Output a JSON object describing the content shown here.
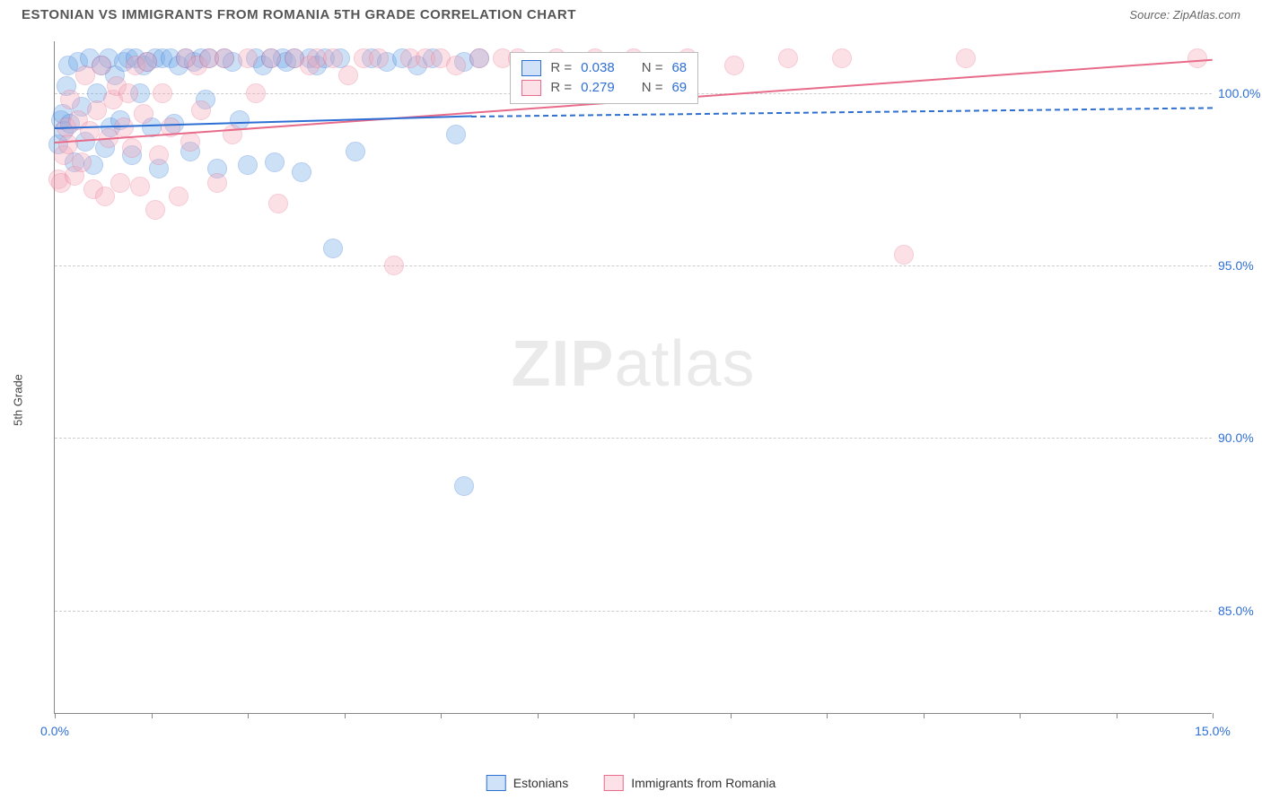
{
  "header": {
    "title": "ESTONIAN VS IMMIGRANTS FROM ROMANIA 5TH GRADE CORRELATION CHART",
    "source_label": "Source:",
    "source_value": "ZipAtlas.com"
  },
  "chart": {
    "type": "scatter",
    "ylabel": "5th Grade",
    "xlim": [
      0,
      15
    ],
    "ylim": [
      82,
      101.5
    ],
    "xtick_positions": [
      0,
      1.25,
      2.5,
      3.75,
      5.0,
      6.25,
      7.5,
      8.75,
      10.0,
      11.25,
      12.5,
      13.75,
      15.0
    ],
    "xtick_labels": {
      "0": "0.0%",
      "15": "15.0%"
    },
    "ytick_positions": [
      85,
      90,
      95,
      100
    ],
    "ytick_labels": {
      "85": "85.0%",
      "90": "90.0%",
      "95": "95.0%",
      "100": "100.0%"
    },
    "xlabel_color": "#2e6fd4",
    "ylabel_tick_color": "#2e6fd4",
    "grid_color": "#cccccc",
    "axis_color": "#888888",
    "background_color": "#ffffff",
    "marker_radius": 11,
    "marker_opacity": 0.35,
    "series": [
      {
        "name": "Estonians",
        "fill_color": "#6fa8e8",
        "stroke_color": "#2e6fd4",
        "trend_color": "#2e6fd4",
        "trend": {
          "x0": 0,
          "y0": 99.0,
          "x1": 5.4,
          "y1": 99.35,
          "dash_x1": 15,
          "dash_y1": 99.6
        },
        "R": "0.038",
        "N": "68",
        "points": [
          [
            0.05,
            98.5
          ],
          [
            0.08,
            99.2
          ],
          [
            0.1,
            99.4
          ],
          [
            0.12,
            98.9
          ],
          [
            0.15,
            100.2
          ],
          [
            0.18,
            100.8
          ],
          [
            0.2,
            99.1
          ],
          [
            0.25,
            98.0
          ],
          [
            0.3,
            100.9
          ],
          [
            0.35,
            99.6
          ],
          [
            0.4,
            98.6
          ],
          [
            0.45,
            101.0
          ],
          [
            0.5,
            97.9
          ],
          [
            0.55,
            100.0
          ],
          [
            0.6,
            100.8
          ],
          [
            0.65,
            98.4
          ],
          [
            0.7,
            101.0
          ],
          [
            0.72,
            99.0
          ],
          [
            0.78,
            100.5
          ],
          [
            0.85,
            99.2
          ],
          [
            0.9,
            100.9
          ],
          [
            0.95,
            101.0
          ],
          [
            1.0,
            98.2
          ],
          [
            1.05,
            101.0
          ],
          [
            1.1,
            100.0
          ],
          [
            1.15,
            100.8
          ],
          [
            1.2,
            100.9
          ],
          [
            1.25,
            99.0
          ],
          [
            1.3,
            101.0
          ],
          [
            1.35,
            97.8
          ],
          [
            1.4,
            101.0
          ],
          [
            1.5,
            101.0
          ],
          [
            1.55,
            99.1
          ],
          [
            1.6,
            100.8
          ],
          [
            1.7,
            101.0
          ],
          [
            1.75,
            98.3
          ],
          [
            1.8,
            100.9
          ],
          [
            1.9,
            101.0
          ],
          [
            1.95,
            99.8
          ],
          [
            2.0,
            101.0
          ],
          [
            2.1,
            97.8
          ],
          [
            2.2,
            101.0
          ],
          [
            2.3,
            100.9
          ],
          [
            2.4,
            99.2
          ],
          [
            2.5,
            97.9
          ],
          [
            2.6,
            101.0
          ],
          [
            2.7,
            100.8
          ],
          [
            2.8,
            101.0
          ],
          [
            2.85,
            98.0
          ],
          [
            2.95,
            101.0
          ],
          [
            3.0,
            100.9
          ],
          [
            3.1,
            101.0
          ],
          [
            3.2,
            97.7
          ],
          [
            3.3,
            101.0
          ],
          [
            3.4,
            100.8
          ],
          [
            3.5,
            101.0
          ],
          [
            3.6,
            95.5
          ],
          [
            3.7,
            101.0
          ],
          [
            3.9,
            98.3
          ],
          [
            4.1,
            101.0
          ],
          [
            4.3,
            100.9
          ],
          [
            4.5,
            101.0
          ],
          [
            4.7,
            100.8
          ],
          [
            4.9,
            101.0
          ],
          [
            5.2,
            98.8
          ],
          [
            5.3,
            100.9
          ],
          [
            5.5,
            101.0
          ],
          [
            5.3,
            88.6
          ]
        ]
      },
      {
        "name": "Immigrants from Romania",
        "fill_color": "#f5a8ba",
        "stroke_color": "#e86b8a",
        "trend_color": "#e86b8a",
        "trend": {
          "x0": 0,
          "y0": 98.6,
          "x1": 15,
          "y1": 101.0
        },
        "R": "0.279",
        "N": "69",
        "points": [
          [
            0.05,
            97.5
          ],
          [
            0.08,
            97.4
          ],
          [
            0.12,
            98.2
          ],
          [
            0.15,
            99.0
          ],
          [
            0.18,
            98.5
          ],
          [
            0.2,
            99.8
          ],
          [
            0.25,
            97.6
          ],
          [
            0.3,
            99.2
          ],
          [
            0.35,
            98.0
          ],
          [
            0.4,
            100.5
          ],
          [
            0.45,
            98.9
          ],
          [
            0.5,
            97.2
          ],
          [
            0.55,
            99.5
          ],
          [
            0.6,
            100.8
          ],
          [
            0.65,
            97.0
          ],
          [
            0.7,
            98.7
          ],
          [
            0.75,
            99.8
          ],
          [
            0.8,
            100.2
          ],
          [
            0.85,
            97.4
          ],
          [
            0.9,
            99.0
          ],
          [
            0.95,
            100.0
          ],
          [
            1.0,
            98.4
          ],
          [
            1.05,
            100.8
          ],
          [
            1.1,
            97.3
          ],
          [
            1.15,
            99.4
          ],
          [
            1.2,
            100.9
          ],
          [
            1.3,
            96.6
          ],
          [
            1.35,
            98.2
          ],
          [
            1.4,
            100.0
          ],
          [
            1.5,
            99.0
          ],
          [
            1.6,
            97.0
          ],
          [
            1.7,
            101.0
          ],
          [
            1.75,
            98.6
          ],
          [
            1.85,
            100.8
          ],
          [
            1.9,
            99.5
          ],
          [
            2.0,
            101.0
          ],
          [
            2.1,
            97.4
          ],
          [
            2.2,
            101.0
          ],
          [
            2.3,
            98.8
          ],
          [
            2.5,
            101.0
          ],
          [
            2.6,
            100.0
          ],
          [
            2.8,
            101.0
          ],
          [
            2.9,
            96.8
          ],
          [
            3.1,
            101.0
          ],
          [
            3.3,
            100.8
          ],
          [
            3.4,
            101.0
          ],
          [
            3.6,
            101.0
          ],
          [
            3.8,
            100.5
          ],
          [
            4.0,
            101.0
          ],
          [
            4.2,
            101.0
          ],
          [
            4.4,
            95.0
          ],
          [
            4.6,
            101.0
          ],
          [
            4.8,
            101.0
          ],
          [
            5.0,
            101.0
          ],
          [
            5.2,
            100.8
          ],
          [
            5.5,
            101.0
          ],
          [
            5.8,
            101.0
          ],
          [
            6.0,
            101.0
          ],
          [
            6.2,
            100.9
          ],
          [
            6.5,
            101.0
          ],
          [
            7.0,
            101.0
          ],
          [
            7.5,
            101.0
          ],
          [
            8.2,
            101.0
          ],
          [
            8.8,
            100.8
          ],
          [
            9.5,
            101.0
          ],
          [
            10.2,
            101.0
          ],
          [
            11.0,
            95.3
          ],
          [
            11.8,
            101.0
          ],
          [
            14.8,
            101.0
          ]
        ]
      }
    ]
  },
  "stats_box": {
    "R_label": "R =",
    "N_label": "N =",
    "value_color": "#2e6fd4",
    "label_color": "#555"
  },
  "legend": {
    "series1": "Estonians",
    "series2": "Immigrants from Romania"
  },
  "watermark": {
    "part1": "ZIP",
    "part2": "atlas"
  }
}
